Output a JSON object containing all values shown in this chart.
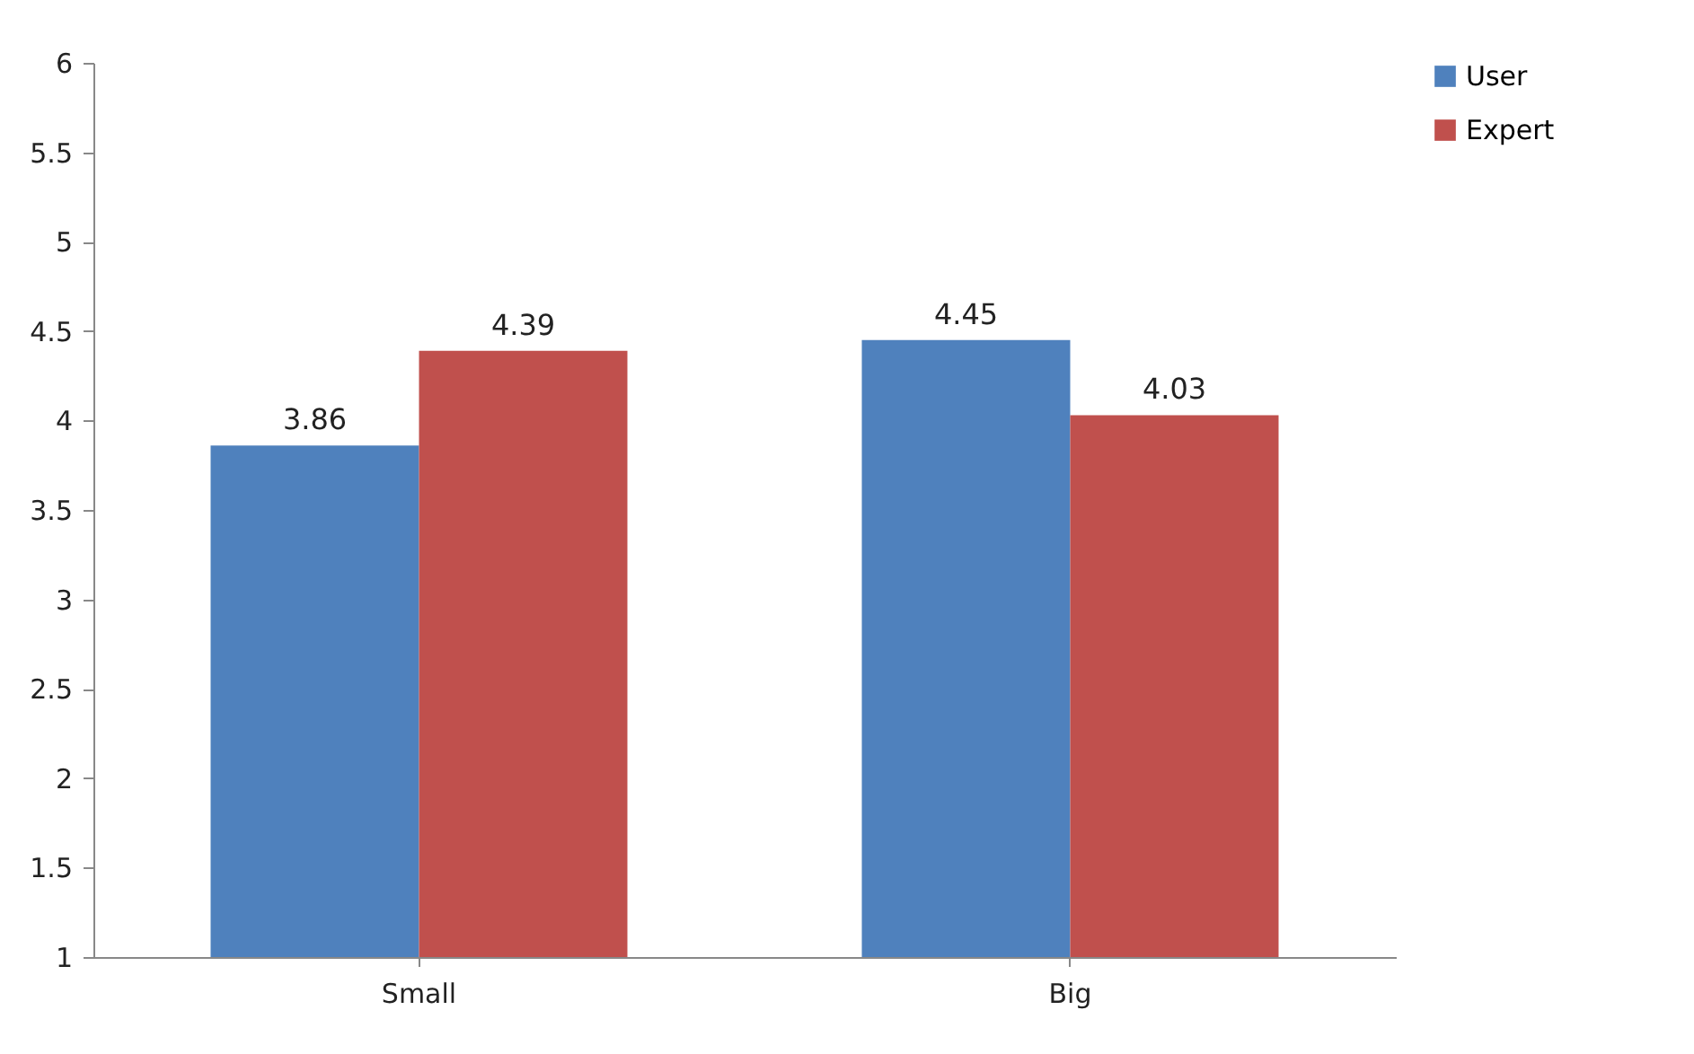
{
  "chart_data": {
    "type": "bar",
    "categories": [
      "Small",
      "Big"
    ],
    "series": [
      {
        "name": "User",
        "color": "#4f81bd",
        "values": [
          3.86,
          4.45
        ]
      },
      {
        "name": "Expert",
        "color": "#c0504d",
        "values": [
          4.39,
          4.03
        ]
      }
    ],
    "ylim": [
      1,
      6
    ],
    "yticks": [
      1,
      1.5,
      2,
      2.5,
      3,
      3.5,
      4,
      4.5,
      5,
      5.5,
      6
    ],
    "grid": false,
    "legend": "right",
    "data_labels": true
  }
}
